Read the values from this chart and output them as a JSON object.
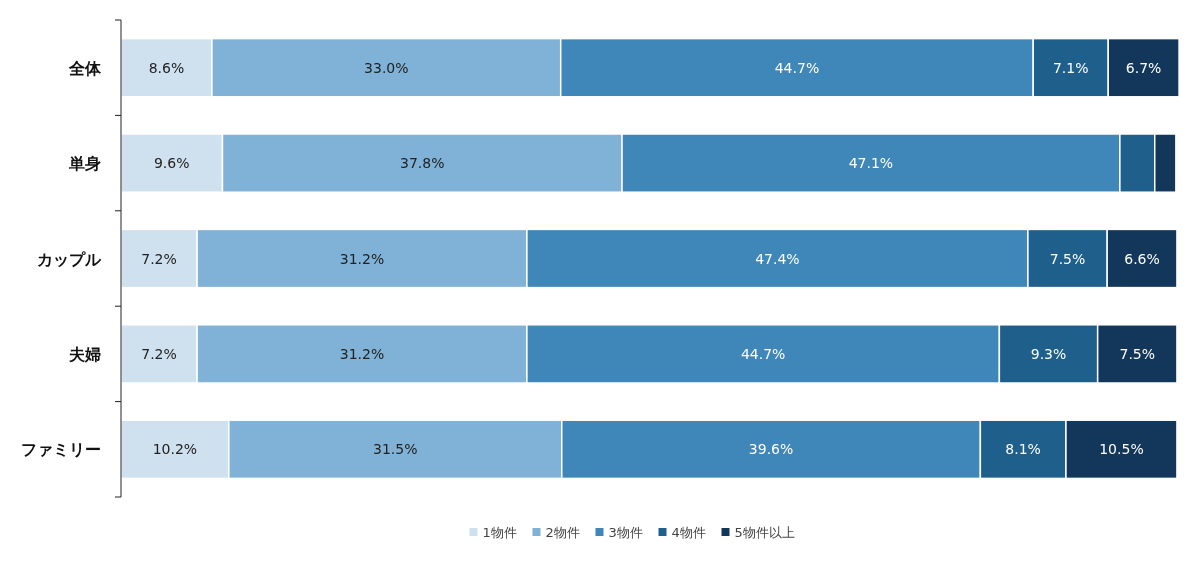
{
  "chart_data": {
    "type": "bar",
    "stacked": true,
    "orientation": "horizontal",
    "legend": "bottom",
    "tick_labels": "y",
    "xlim": [
      0,
      100
    ],
    "categories": [
      "全体",
      "単身",
      "カップル",
      "夫婦",
      "ファミリー"
    ],
    "series": [
      {
        "name": "1物件",
        "color": "#cfe0ef",
        "values": [
          8.6,
          9.6,
          7.2,
          7.2,
          10.2
        ],
        "value_labels": [
          "8.6%",
          "9.6%",
          "7.2%",
          "7.2%",
          "10.2%"
        ]
      },
      {
        "name": "2物件",
        "color": "#7fb2d6",
        "values": [
          33.0,
          37.8,
          31.2,
          31.2,
          31.5
        ],
        "value_labels": [
          "33.0%",
          "37.8%",
          "31.2%",
          "31.2%",
          "31.5%"
        ]
      },
      {
        "name": "3物件",
        "color": "#3f87b8",
        "values": [
          44.7,
          47.1,
          47.4,
          44.7,
          39.6
        ],
        "value_labels": [
          "44.7%",
          "47.1%",
          "47.4%",
          "44.7%",
          "39.6%"
        ]
      },
      {
        "name": "4物件",
        "color": "#1f5f8b",
        "values": [
          7.1,
          3.3,
          7.5,
          9.3,
          8.1
        ],
        "value_labels": [
          "7.1%",
          null,
          "7.5%",
          "9.3%",
          "8.1%"
        ]
      },
      {
        "name": "5物件以上",
        "color": "#12375a",
        "values": [
          6.7,
          2.0,
          6.6,
          7.5,
          10.5
        ],
        "value_labels": [
          "6.7%",
          null,
          "6.6%",
          "7.5%",
          "10.5%"
        ]
      }
    ]
  }
}
